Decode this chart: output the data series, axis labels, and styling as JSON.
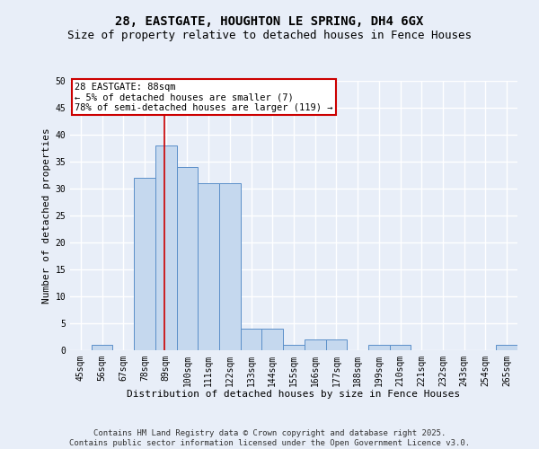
{
  "title1": "28, EASTGATE, HOUGHTON LE SPRING, DH4 6GX",
  "title2": "Size of property relative to detached houses in Fence Houses",
  "xlabel": "Distribution of detached houses by size in Fence Houses",
  "ylabel": "Number of detached properties",
  "categories": [
    "45sqm",
    "56sqm",
    "67sqm",
    "78sqm",
    "89sqm",
    "100sqm",
    "111sqm",
    "122sqm",
    "133sqm",
    "144sqm",
    "155sqm",
    "166sqm",
    "177sqm",
    "188sqm",
    "199sqm",
    "210sqm",
    "221sqm",
    "232sqm",
    "243sqm",
    "254sqm",
    "265sqm"
  ],
  "values": [
    0,
    1,
    0,
    32,
    38,
    34,
    31,
    31,
    4,
    4,
    1,
    2,
    2,
    0,
    1,
    1,
    0,
    0,
    0,
    0,
    1
  ],
  "bar_color": "#c5d8ee",
  "bar_edge_color": "#5b8fc9",
  "bar_width": 1.0,
  "vline_x": 3.91,
  "vline_color": "#cc0000",
  "ylim": [
    0,
    50
  ],
  "yticks": [
    0,
    5,
    10,
    15,
    20,
    25,
    30,
    35,
    40,
    45,
    50
  ],
  "background_color": "#e8eef8",
  "grid_color": "#ffffff",
  "annotation_text": "28 EASTGATE: 88sqm\n← 5% of detached houses are smaller (7)\n78% of semi-detached houses are larger (119) →",
  "annotation_box_facecolor": "#ffffff",
  "annotation_box_edge": "#cc0000",
  "footer": "Contains HM Land Registry data © Crown copyright and database right 2025.\nContains public sector information licensed under the Open Government Licence v3.0.",
  "title_fontsize": 10,
  "subtitle_fontsize": 9,
  "axis_label_fontsize": 8,
  "tick_fontsize": 7,
  "annotation_fontsize": 7.5,
  "footer_fontsize": 6.5
}
